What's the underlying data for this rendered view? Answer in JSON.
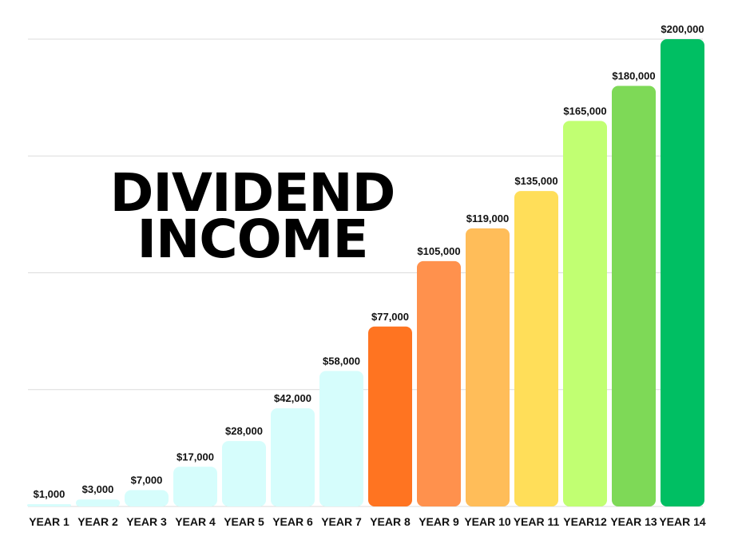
{
  "chart_data": {
    "type": "bar",
    "title_lines": [
      "DIVIDEND",
      "INCOME"
    ],
    "xlabel": "",
    "ylabel": "",
    "ylim": [
      0,
      200000
    ],
    "grid": true,
    "categories": [
      "YEAR 1",
      "YEAR 2",
      "YEAR 3",
      "YEAR 4",
      "YEAR 5",
      "YEAR 6",
      "YEAR 7",
      "YEAR 8",
      "YEAR 9",
      "YEAR 10",
      "YEAR 11",
      "YEAR12",
      "YEAR 13",
      "YEAR 14"
    ],
    "values": [
      1000,
      3000,
      7000,
      17000,
      28000,
      42000,
      58000,
      77000,
      105000,
      119000,
      135000,
      165000,
      180000,
      200000
    ],
    "value_labels": [
      "$1,000",
      "$3,000",
      "$7,000",
      "$17,000",
      "$28,000",
      "$42,000",
      "$58,000",
      "$77,000",
      "$105,000",
      "$119,000",
      "$135,000",
      "$165,000",
      "$180,000",
      "$200,000"
    ],
    "colors": [
      "#d6fdfc",
      "#d6fdfc",
      "#d6fdfc",
      "#d6fdfc",
      "#d6fdfc",
      "#d6fdfc",
      "#d6fdfc",
      "#ff7421",
      "#ff914d",
      "#ffbd59",
      "#ffde59",
      "#c1ff72",
      "#7ed957",
      "#00bf63"
    ]
  }
}
